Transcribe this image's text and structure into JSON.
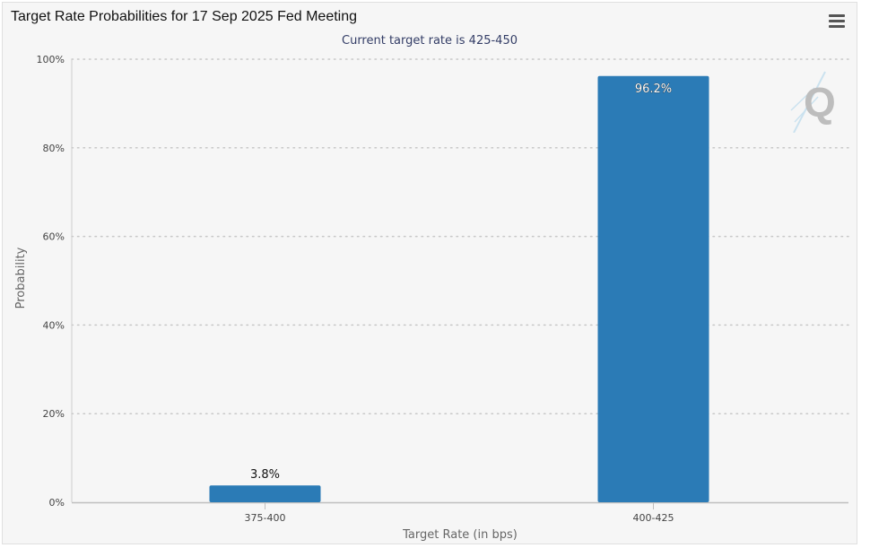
{
  "header": {
    "title": "Target Rate Probabilities for 17 Sep 2025 Fed Meeting",
    "subtitle": "Current target rate is 425-450"
  },
  "chart_data": {
    "type": "bar",
    "title": "Target Rate Probabilities for 17 Sep 2025 Fed Meeting",
    "subtitle": "Current target rate is 425-450",
    "categories": [
      "375-400",
      "400-425"
    ],
    "values": [
      3.8,
      96.2
    ],
    "data_labels": [
      "3.8%",
      "96.2%"
    ],
    "xlabel": "Target Rate (in bps)",
    "ylabel": "Probability",
    "ylim": [
      0,
      100
    ],
    "yticks": [
      0,
      20,
      40,
      60,
      80,
      100
    ],
    "ytick_labels": [
      "0%",
      "20%",
      "40%",
      "60%",
      "80%",
      "100%"
    ],
    "grid": true,
    "bar_color": "#2b7bb6"
  },
  "icons": {
    "menu": "hamburger-menu-icon",
    "watermark": "q-logo-icon"
  }
}
